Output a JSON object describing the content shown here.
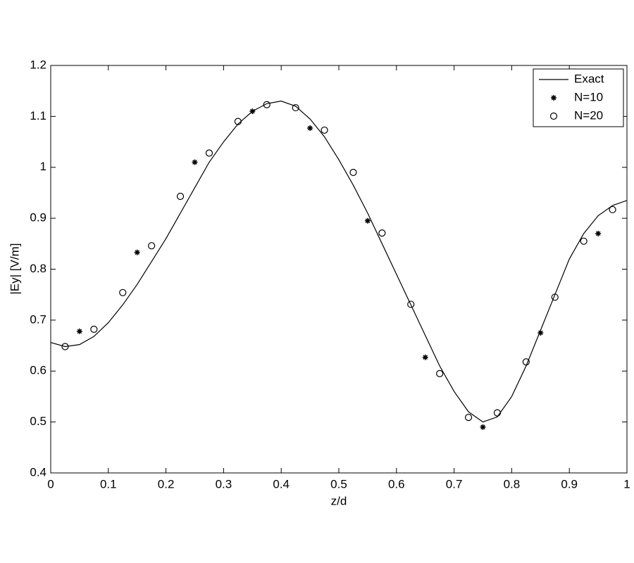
{
  "chart_data": {
    "type": "line",
    "xlabel": "z/d",
    "ylabel": "|Ey| [V/m]",
    "xlim": [
      0,
      1
    ],
    "ylim": [
      0.4,
      1.2
    ],
    "xticks": [
      0,
      0.1,
      0.2,
      0.3,
      0.4,
      0.5,
      0.6,
      0.7,
      0.8,
      0.9,
      1
    ],
    "yticks": [
      0.4,
      0.5,
      0.6,
      0.7,
      0.8,
      0.9,
      1,
      1.1,
      1.2
    ],
    "legend": "upper right",
    "series": [
      {
        "name": "Exact",
        "color": "#000000",
        "marker": "line",
        "x": [
          0,
          0.025,
          0.05,
          0.075,
          0.1,
          0.125,
          0.15,
          0.175,
          0.2,
          0.225,
          0.25,
          0.275,
          0.3,
          0.325,
          0.35,
          0.375,
          0.4,
          0.425,
          0.45,
          0.475,
          0.5,
          0.525,
          0.55,
          0.575,
          0.6,
          0.625,
          0.65,
          0.675,
          0.7,
          0.725,
          0.75,
          0.775,
          0.8,
          0.825,
          0.85,
          0.875,
          0.9,
          0.925,
          0.95,
          0.975,
          1
        ],
        "values": [
          0.656,
          0.648,
          0.652,
          0.668,
          0.695,
          0.73,
          0.77,
          0.815,
          0.86,
          0.91,
          0.96,
          1.01,
          1.05,
          1.085,
          1.11,
          1.125,
          1.13,
          1.12,
          1.095,
          1.06,
          1.015,
          0.965,
          0.91,
          0.85,
          0.79,
          0.73,
          0.67,
          0.61,
          0.56,
          0.52,
          0.5,
          0.51,
          0.55,
          0.61,
          0.68,
          0.75,
          0.82,
          0.87,
          0.905,
          0.925,
          0.935
        ]
      },
      {
        "name": "N=10",
        "color": "#000000",
        "marker": "star",
        "x": [
          0.05,
          0.15,
          0.25,
          0.35,
          0.45,
          0.55,
          0.65,
          0.75,
          0.85,
          0.95
        ],
        "values": [
          0.678,
          0.833,
          1.01,
          1.11,
          1.077,
          0.895,
          0.627,
          0.49,
          0.675,
          0.87
        ]
      },
      {
        "name": "N=20",
        "color": "#000000",
        "marker": "circle",
        "x": [
          0.025,
          0.075,
          0.125,
          0.175,
          0.225,
          0.275,
          0.325,
          0.375,
          0.425,
          0.475,
          0.525,
          0.575,
          0.625,
          0.675,
          0.725,
          0.775,
          0.825,
          0.875,
          0.925,
          0.975
        ],
        "values": [
          0.648,
          0.682,
          0.754,
          0.846,
          0.943,
          1.028,
          1.09,
          1.123,
          1.117,
          1.073,
          0.99,
          0.871,
          0.731,
          0.595,
          0.509,
          0.518,
          0.618,
          0.745,
          0.855,
          0.917
        ]
      }
    ]
  }
}
